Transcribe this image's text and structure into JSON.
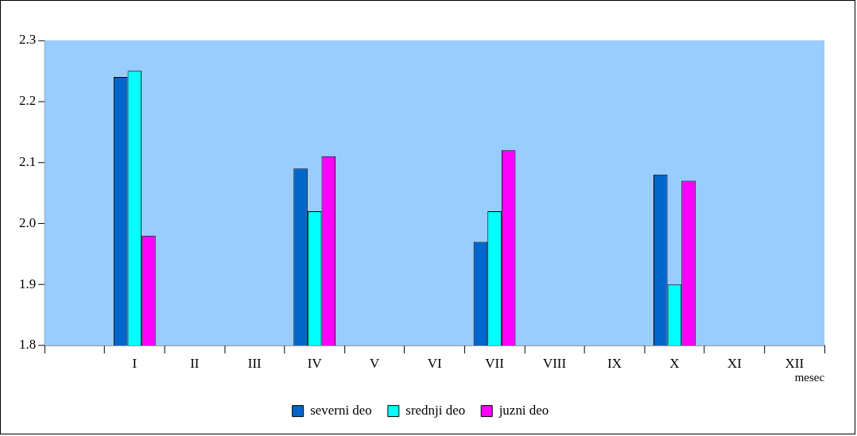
{
  "chart_data": {
    "type": "bar",
    "xlabel": "mesec",
    "categories": [
      null,
      "I",
      "II",
      "III",
      "IV",
      "V",
      "VI",
      "VII",
      "VIII",
      "IX",
      "X",
      "XI",
      "XII"
    ],
    "series": [
      {
        "name": "severni deo",
        "color": "#0066cc",
        "values": [
          null,
          2.24,
          null,
          null,
          2.09,
          null,
          null,
          1.97,
          null,
          null,
          2.08,
          null,
          null
        ]
      },
      {
        "name": "srednji deo",
        "color": "#00ffff",
        "values": [
          null,
          2.25,
          null,
          null,
          2.02,
          null,
          null,
          2.02,
          null,
          null,
          1.9,
          null,
          null
        ]
      },
      {
        "name": "juzni deo",
        "color": "#ff00ff",
        "values": [
          null,
          1.98,
          null,
          null,
          2.11,
          null,
          null,
          2.12,
          null,
          null,
          2.07,
          null,
          null
        ]
      }
    ],
    "ylim": [
      1.8,
      2.3
    ],
    "yticks": [
      1.8,
      1.9,
      {
        "value": 2,
        "label": "2.0"
      },
      2.1,
      2.2,
      2.3
    ],
    "grid": false,
    "legend": "bottom"
  }
}
